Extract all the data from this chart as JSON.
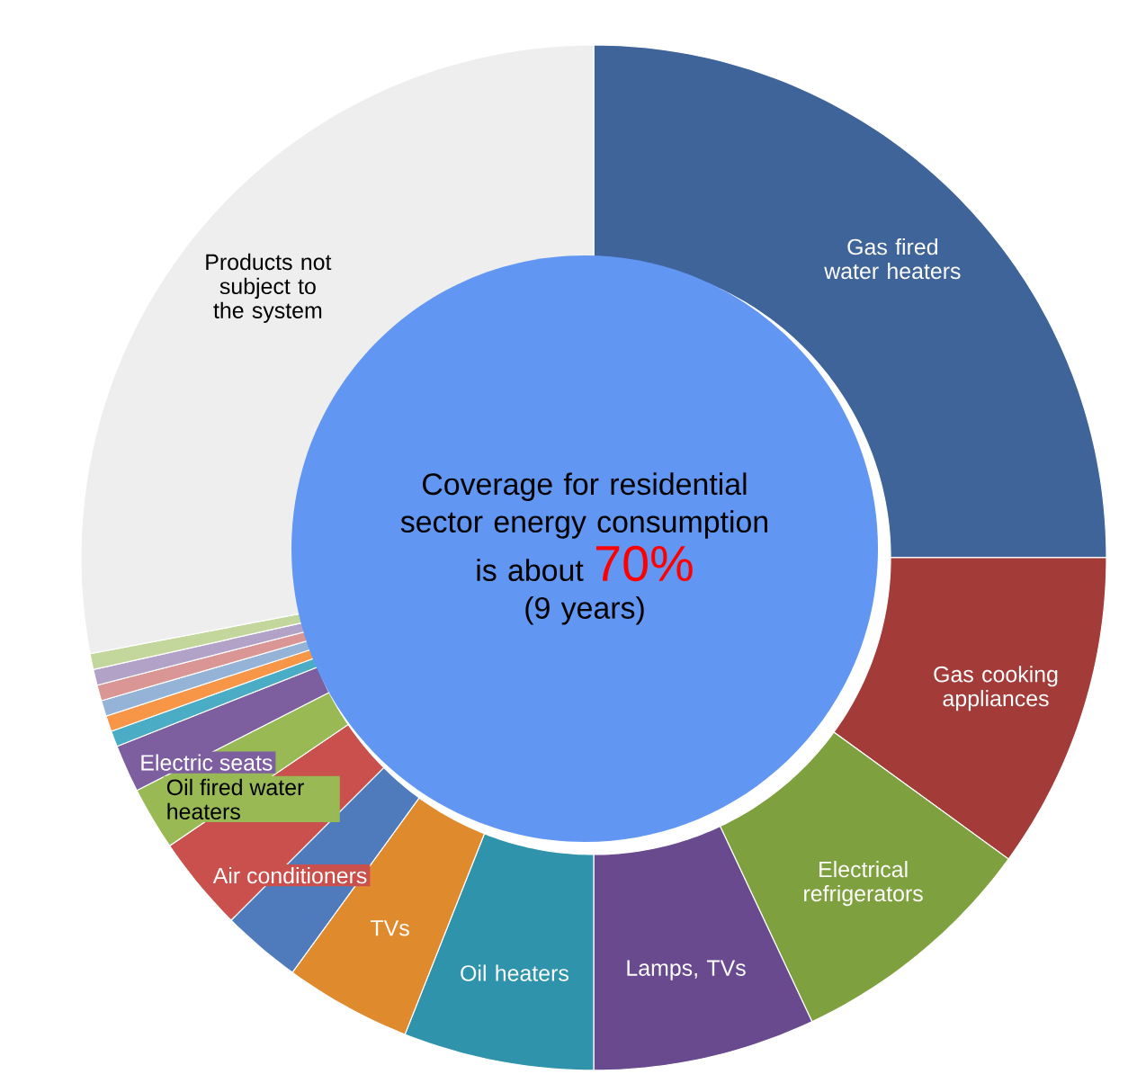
{
  "chart_data": {
    "type": "donut",
    "categories": [
      "Gas fired water heaters",
      "Gas cooking appliances",
      "Electrical refrigerators",
      "Lamps, TVs",
      "Oil heaters",
      "TVs",
      null,
      "Air conditioners",
      "Oil fired water heaters",
      "Electric seats",
      null,
      null,
      null,
      null,
      null,
      null,
      "Products not subject to the system"
    ],
    "values": [
      25,
      10,
      8,
      7,
      6,
      4,
      2.5,
      3,
      2,
      1.5,
      0.5,
      0.5,
      0.5,
      0.5,
      0.5,
      0.5,
      28
    ],
    "colors": [
      "#3f6499",
      "#a33b38",
      "#7fa03e",
      "#6a4a8f",
      "#2f93ab",
      "#e08a2e",
      "#4f7bbd",
      "#c9504c",
      "#98b954",
      "#7d5fa0",
      "#4bacc6",
      "#f79646",
      "#95b3d7",
      "#d99694",
      "#b3a2c7",
      "#c3d69b",
      "#eeeeee"
    ],
    "annotations": [
      "Coverage for residential sector energy consumption",
      "is about",
      "70%",
      "(9 years)"
    ]
  }
}
